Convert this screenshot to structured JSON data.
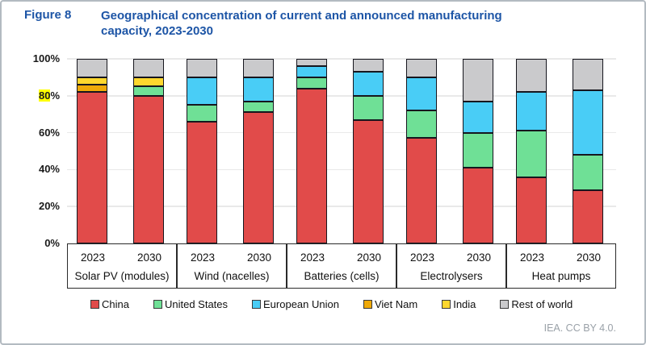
{
  "header": {
    "figure_label": "Figure 8",
    "title_line1": "Geographical concentration of current and announced manufacturing",
    "title_line2": "capacity, 2023-2030"
  },
  "footer": {
    "credit": "IEA. CC BY 4.0."
  },
  "chart_data": {
    "type": "bar",
    "stacked": true,
    "title": "Geographical concentration of current and announced manufacturing capacity, 2023-2030",
    "unit": "%",
    "ylim": [
      0,
      100
    ],
    "yticks": [
      "0%",
      "20%",
      "40%",
      "60%",
      "80%",
      "100%"
    ],
    "highlighted_tick": "80%",
    "highlighted_text": "80",
    "grid": true,
    "legend_position": "bottom",
    "gridline_color": "#e9e9e9",
    "segment_border_color": "#16161e",
    "regions": [
      {
        "name": "China",
        "color": "#e14b4a"
      },
      {
        "name": "United States",
        "color": "#6fe096"
      },
      {
        "name": "European Union",
        "color": "#49cdf6"
      },
      {
        "name": "Viet Nam",
        "color": "#efa908"
      },
      {
        "name": "India",
        "color": "#fed72e"
      },
      {
        "name": "Rest of world",
        "color": "#cacacc"
      }
    ],
    "years": [
      "2023",
      "2030"
    ],
    "groups": [
      {
        "label": "Solar PV (modules)",
        "values": {
          "2023": [
            82,
            0,
            0,
            4,
            4,
            10
          ],
          "2030": [
            80,
            5,
            0,
            0,
            5,
            10
          ]
        }
      },
      {
        "label": "Wind (nacelles)",
        "values": {
          "2023": [
            66,
            9,
            15,
            0,
            0,
            10
          ],
          "2030": [
            71,
            6,
            13,
            0,
            0,
            10
          ]
        }
      },
      {
        "label": "Batteries (cells)",
        "values": {
          "2023": [
            84,
            6,
            6,
            0,
            0,
            4
          ],
          "2030": [
            67,
            13,
            13,
            0,
            0,
            7
          ]
        }
      },
      {
        "label": "Electrolysers",
        "values": {
          "2023": [
            57,
            15,
            18,
            0,
            0,
            10
          ],
          "2030": [
            41,
            19,
            17,
            0,
            0,
            23
          ]
        }
      },
      {
        "label": "Heat pumps",
        "values": {
          "2023": [
            36,
            25,
            21,
            0,
            0,
            18
          ],
          "2030": [
            29,
            19,
            35,
            0,
            0,
            17
          ]
        }
      }
    ]
  }
}
